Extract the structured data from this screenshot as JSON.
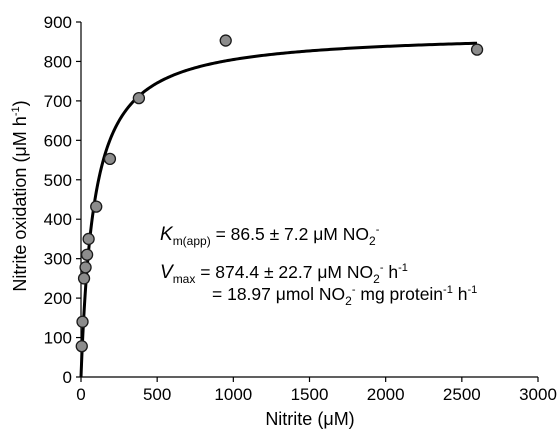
{
  "chart_data": {
    "type": "scatter",
    "xlabel": {
      "main": "Nitrite (",
      "mu": "μ",
      "end": "M)"
    },
    "ylabel": {
      "main": "Nitrite oxidation (",
      "mu": "μ",
      "unit": "M h",
      "sup": "-1",
      "end": ")"
    },
    "xlim": [
      0,
      3000
    ],
    "ylim": [
      0,
      900
    ],
    "xticks": [
      0,
      500,
      1000,
      1500,
      2000,
      2500,
      3000
    ],
    "yticks": [
      0,
      100,
      200,
      300,
      400,
      500,
      600,
      700,
      800,
      900
    ],
    "grid": false,
    "legend": "none",
    "points": {
      "x": [
        5,
        10,
        20,
        30,
        40,
        50,
        100,
        190,
        380,
        950,
        2600
      ],
      "y": [
        78,
        140,
        250,
        278,
        310,
        350,
        432,
        553,
        707,
        853,
        830
      ],
      "color": "#8c8c8c",
      "edge": "#1a1a1a"
    },
    "fit": {
      "model": "michaelis-menten",
      "km": 86.5,
      "vmax": 874.4,
      "x_start": 0,
      "x_end": 2600,
      "color": "#000000"
    },
    "annotations": {
      "km": {
        "sym": "K",
        "sub": "m(app)",
        "value": " = 86.5 ± 7.2 μM NO",
        "sub2": "2",
        "sup2": "-"
      },
      "vmax1": {
        "sym": "V",
        "sub": "max",
        "value": " = 874.4 ± 22.7 μM NO",
        "sub2": "2",
        "sup2": "-",
        "tail": " h",
        "tail_sup": "-1"
      },
      "vmax2": {
        "value": "= 18.97 μmol NO",
        "sub2": "2",
        "sup2": "-",
        "mid": " mg protein",
        "mid_sup": "-1",
        "tail": " h",
        "tail_sup": "-1"
      }
    }
  }
}
